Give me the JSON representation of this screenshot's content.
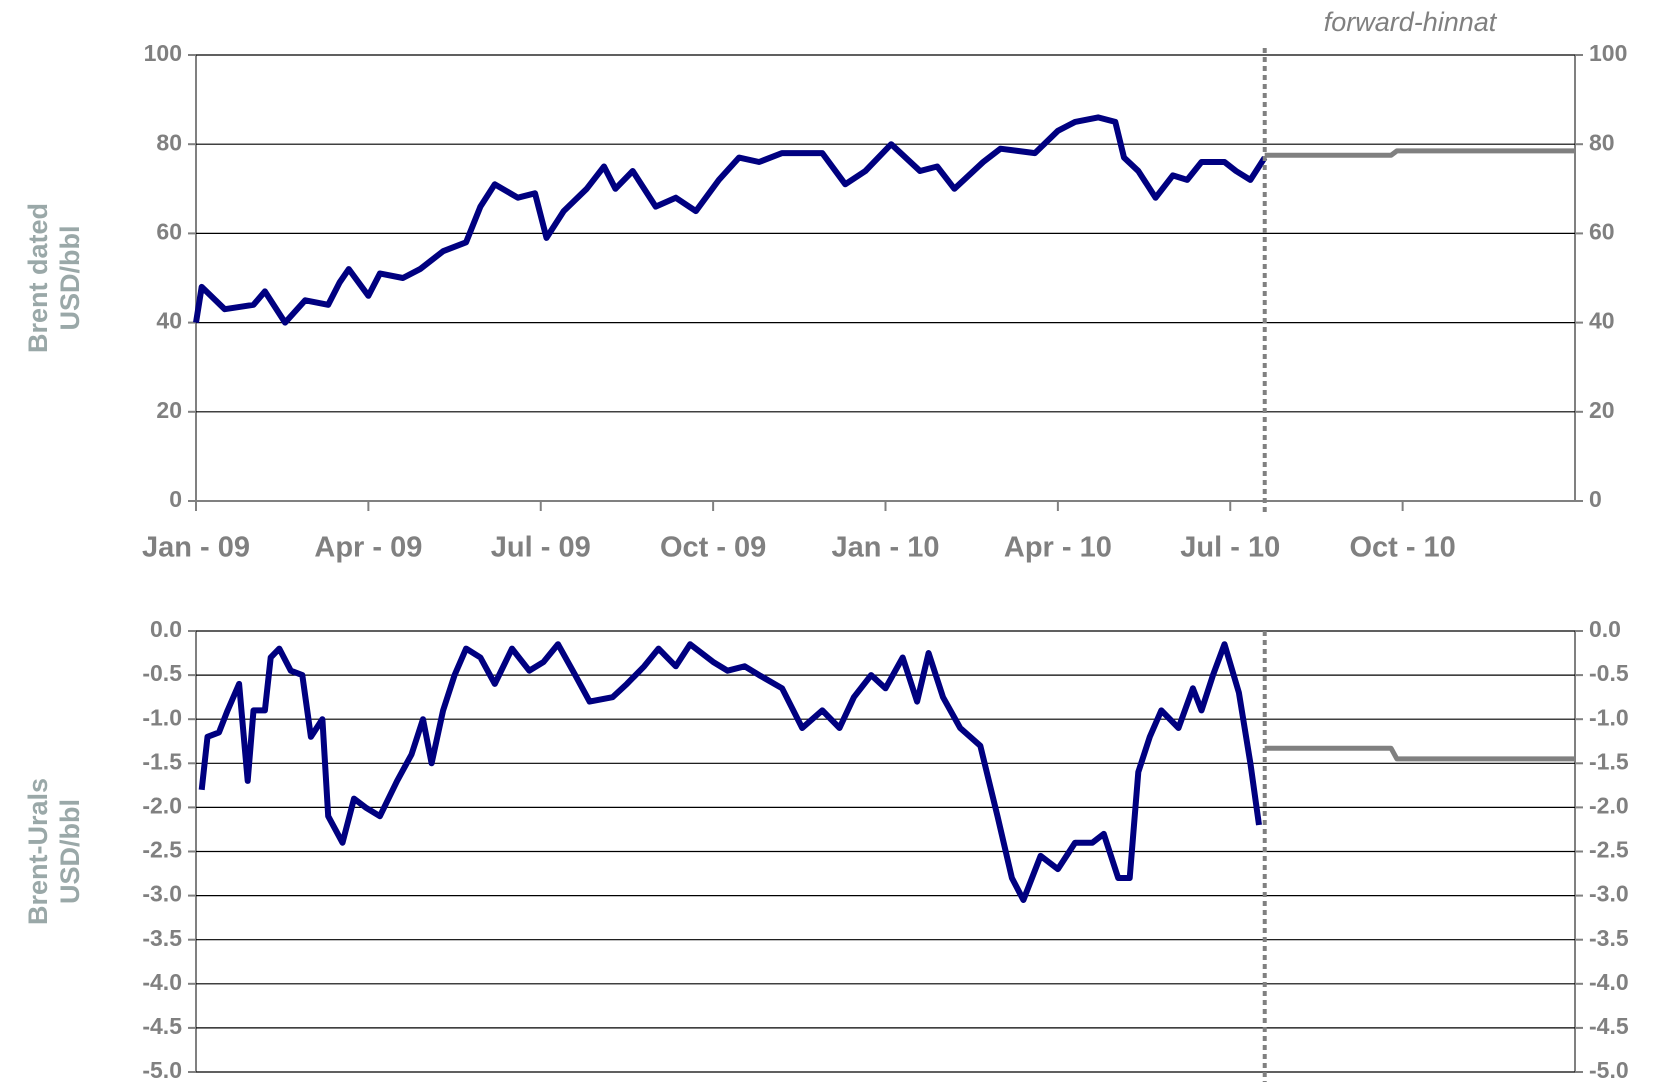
{
  "chart_data": [
    {
      "type": "line",
      "ylabel": [
        "Brent dated",
        "USD/bbl"
      ],
      "annotation": "forward-hinnat",
      "divider_x": 18.6,
      "xlim": [
        0,
        24
      ],
      "xticks": [
        {
          "value": 0,
          "label": "Jan - 09"
        },
        {
          "value": 3,
          "label": "Apr - 09"
        },
        {
          "value": 6,
          "label": "Jul - 09"
        },
        {
          "value": 9,
          "label": "Oct - 09"
        },
        {
          "value": 12,
          "label": "Jan - 10"
        },
        {
          "value": 15,
          "label": "Apr - 10"
        },
        {
          "value": 18,
          "label": "Jul - 10"
        },
        {
          "value": 21,
          "label": "Oct - 10"
        }
      ],
      "ylim": [
        0,
        100
      ],
      "yticks": [
        0,
        20,
        40,
        60,
        80,
        100
      ],
      "grid": true,
      "series": [
        {
          "color": "#000080",
          "x": [
            0,
            0.1,
            0.5,
            1,
            1.2,
            1.55,
            1.9,
            2.3,
            2.5,
            2.66,
            3,
            3.2,
            3.6,
            3.9,
            4.3,
            4.7,
            4.95,
            5.2,
            5.6,
            5.9,
            6.1,
            6.4,
            6.8,
            7.1,
            7.3,
            7.6,
            8,
            8.35,
            8.7,
            9.1,
            9.45,
            9.8,
            10.2,
            10.9,
            11.3,
            11.65,
            12.1,
            12.6,
            12.9,
            13.2,
            13.7,
            14,
            14.6,
            15,
            15.3,
            15.7,
            16,
            16.15,
            16.4,
            16.7,
            17,
            17.25,
            17.5,
            17.9,
            18.1,
            18.35,
            18.6
          ],
          "values": [
            40,
            48,
            43,
            44,
            47,
            40,
            45,
            44,
            49,
            52,
            46,
            51,
            50,
            52,
            56,
            58,
            66,
            71,
            68,
            69,
            59,
            65,
            70,
            75,
            70,
            74,
            66,
            68,
            65,
            72,
            77,
            76,
            78,
            78,
            71,
            74,
            80,
            74,
            75,
            70,
            76,
            79,
            78,
            83,
            85,
            86,
            85,
            77,
            74,
            68,
            73,
            72,
            76,
            76,
            74,
            72,
            77
          ]
        },
        {
          "color": "#808080",
          "x": [
            18.6,
            20.8,
            20.9,
            24
          ],
          "values": [
            77.5,
            77.5,
            78.5,
            78.5
          ]
        }
      ]
    },
    {
      "type": "line",
      "ylabel": [
        "Brent-Urals",
        "USD/bbl"
      ],
      "divider_x": 18.6,
      "xlim": [
        0,
        24
      ],
      "ylim": [
        -5,
        0
      ],
      "yticks": [
        {
          "value": 0,
          "label": "0.0"
        },
        -0.5,
        {
          "value": -1,
          "label": "-1.0"
        },
        -1.5,
        {
          "value": -2,
          "label": "-2.0"
        },
        -2.5,
        {
          "value": -3,
          "label": "-3.0"
        },
        -3.5,
        {
          "value": -4,
          "label": "-4.0"
        },
        -4.5,
        {
          "value": -5,
          "label": "-5.0"
        }
      ],
      "grid": true,
      "series": [
        {
          "color": "#000080",
          "x": [
            0.1,
            0.2,
            0.4,
            0.55,
            0.75,
            0.9,
            1,
            1.2,
            1.3,
            1.45,
            1.65,
            1.85,
            2,
            2.2,
            2.3,
            2.55,
            2.75,
            2.95,
            3.2,
            3.5,
            3.75,
            3.95,
            4.1,
            4.3,
            4.5,
            4.7,
            4.95,
            5.2,
            5.5,
            5.8,
            6.05,
            6.3,
            6.6,
            6.85,
            7.25,
            7.5,
            7.8,
            8.05,
            8.35,
            8.6,
            9,
            9.25,
            9.55,
            9.8,
            10.2,
            10.55,
            10.9,
            11.2,
            11.45,
            11.75,
            12,
            12.3,
            12.55,
            12.75,
            13,
            13.3,
            13.65,
            13.95,
            14.2,
            14.4,
            14.7,
            15,
            15.3,
            15.6,
            15.8,
            16.05,
            16.25,
            16.4,
            16.6,
            16.8,
            17.1,
            17.35,
            17.5,
            17.7,
            17.9,
            18.15,
            18.35,
            18.5
          ],
          "values": [
            -1.8,
            -1.2,
            -1.15,
            -0.9,
            -0.6,
            -1.7,
            -0.9,
            -0.9,
            -0.3,
            -0.2,
            -0.45,
            -0.5,
            -1.2,
            -1.0,
            -2.1,
            -2.4,
            -1.9,
            -2.0,
            -2.1,
            -1.7,
            -1.4,
            -1.0,
            -1.5,
            -0.9,
            -0.5,
            -0.2,
            -0.3,
            -0.6,
            -0.2,
            -0.45,
            -0.35,
            -0.15,
            -0.5,
            -0.8,
            -0.75,
            -0.6,
            -0.4,
            -0.2,
            -0.4,
            -0.15,
            -0.35,
            -0.45,
            -0.4,
            -0.5,
            -0.65,
            -1.1,
            -0.9,
            -1.1,
            -0.75,
            -0.5,
            -0.65,
            -0.3,
            -0.8,
            -0.25,
            -0.75,
            -1.1,
            -1.3,
            -2.1,
            -2.8,
            -3.05,
            -2.55,
            -2.7,
            -2.4,
            -2.4,
            -2.3,
            -2.8,
            -2.8,
            -1.6,
            -1.2,
            -0.9,
            -1.1,
            -0.65,
            -0.9,
            -0.5,
            -0.15,
            -0.7,
            -1.5,
            -2.2
          ]
        },
        {
          "color": "#808080",
          "x": [
            18.6,
            20.8,
            20.9,
            24
          ],
          "values": [
            -1.33,
            -1.33,
            -1.45,
            -1.45
          ]
        }
      ]
    }
  ]
}
